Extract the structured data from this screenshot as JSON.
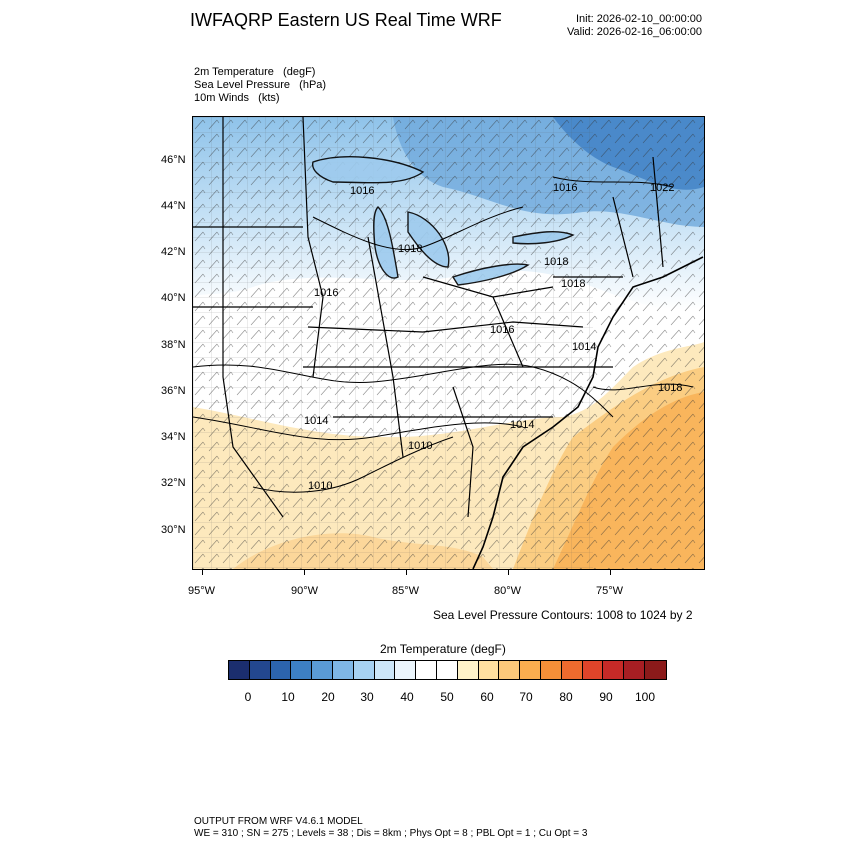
{
  "header": {
    "title": "IWFAQRP Eastern US Real Time WRF",
    "init": "Init: 2026-02-10_00:00:00",
    "valid": "Valid: 2026-02-16_06:00:00"
  },
  "fields": [
    "2m Temperature   (degF)",
    "Sea Level Pressure   (hPa)",
    "10m Winds   (kts)"
  ],
  "lat_labels": [
    "46°N",
    "44°N",
    "42°N",
    "40°N",
    "38°N",
    "36°N",
    "34°N",
    "32°N",
    "30°N"
  ],
  "lon_labels": [
    "95°W",
    "90°W",
    "85°W",
    "80°W",
    "75°W"
  ],
  "pressure_labels": [
    "1016",
    "1016",
    "1022",
    "1018",
    "1018",
    "1016",
    "1018",
    "1016",
    "1014",
    "1018",
    "1014",
    "1014",
    "1010",
    "1010"
  ],
  "contour_note": "Sea Level Pressure Contours: 1008 to 1024 by 2",
  "colorbar": {
    "title": "2m Temperature  (degF)",
    "labels": [
      "0",
      "10",
      "20",
      "30",
      "40",
      "50",
      "60",
      "70",
      "80",
      "90",
      "100"
    ],
    "colors": [
      "#1b2e6e",
      "#23478f",
      "#2c64ad",
      "#3d80c4",
      "#5a9bd6",
      "#7fb7e6",
      "#a6d1f1",
      "#cce6f8",
      "#ebf5fc",
      "#ffffff",
      "#ffffff",
      "#fff3c9",
      "#ffe0a0",
      "#fcc97a",
      "#fbae4f",
      "#f68f38",
      "#ee6b2e",
      "#e0442a",
      "#c62a27",
      "#a71e23",
      "#8b1a1a"
    ]
  },
  "footer": {
    "line1": "OUTPUT FROM WRF V4.6.1 MODEL",
    "line2": "WE = 310 ; SN = 275 ; Levels = 38 ; Dis = 8km ; Phys Opt = 8 ; PBL Opt = 1 ; Cu Opt = 3"
  }
}
